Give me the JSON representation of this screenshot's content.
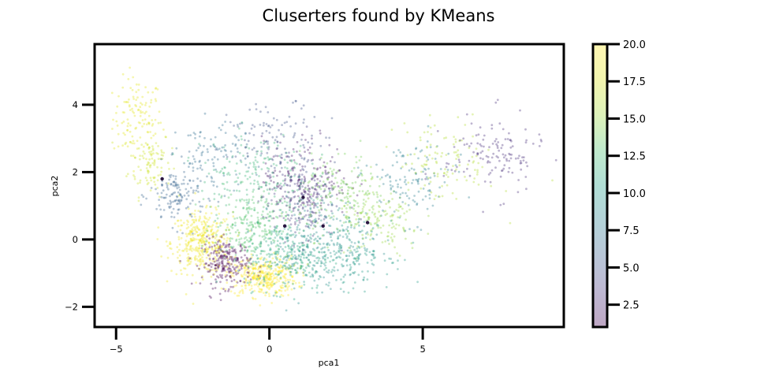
{
  "chart_data": {
    "type": "scatter",
    "title": "Cluserters found by KMeans",
    "xlabel": "pca1",
    "ylabel": "pca2",
    "xlim": [
      -5.7,
      9.6
    ],
    "ylim": [
      -2.6,
      5.8
    ],
    "xticks": [
      -5,
      0,
      5
    ],
    "xtick_labels": [
      "−5",
      "0",
      "5"
    ],
    "yticks": [
      -2,
      0,
      2,
      4
    ],
    "ytick_labels": [
      "−2",
      "0",
      "2",
      "4"
    ],
    "grid": false,
    "colormap": "viridis",
    "point_alpha": 0.35,
    "colorbar": {
      "range": [
        1.0,
        20.0
      ],
      "ticks": [
        2.5,
        5.0,
        7.5,
        10.0,
        12.5,
        15.0,
        17.5,
        20.0
      ],
      "tick_labels": [
        "2.5",
        "5.0",
        "7.5",
        "10.0",
        "12.5",
        "15.0",
        "17.5",
        "20.0"
      ]
    },
    "clusters": [
      {
        "cluster": 18,
        "center": [
          -4.3,
          3.6
        ],
        "spread": [
          0.4,
          0.6
        ],
        "n": 120
      },
      {
        "cluster": 17,
        "center": [
          -3.9,
          2.3
        ],
        "spread": [
          0.35,
          0.5
        ],
        "n": 100
      },
      {
        "cluster": 19,
        "center": [
          -2.2,
          -0.1
        ],
        "spread": [
          0.5,
          0.45
        ],
        "n": 380
      },
      {
        "cluster": 20,
        "center": [
          -0.2,
          -1.1
        ],
        "spread": [
          0.55,
          0.3
        ],
        "n": 380
      },
      {
        "cluster": 1,
        "center": [
          -1.4,
          -0.7
        ],
        "spread": [
          0.4,
          0.35
        ],
        "n": 240
      },
      {
        "cluster": 6,
        "center": [
          -3.0,
          1.3
        ],
        "spread": [
          0.45,
          0.45
        ],
        "n": 140
      },
      {
        "cluster": 13,
        "center": [
          -0.6,
          0.4
        ],
        "spread": [
          0.6,
          0.5
        ],
        "n": 240
      },
      {
        "cluster": 11,
        "center": [
          0.6,
          -0.5
        ],
        "spread": [
          0.7,
          0.5
        ],
        "n": 250
      },
      {
        "cluster": 9,
        "center": [
          1.5,
          0.0
        ],
        "spread": [
          0.9,
          0.7
        ],
        "n": 270
      },
      {
        "cluster": 4,
        "center": [
          1.0,
          1.2
        ],
        "spread": [
          0.6,
          0.6
        ],
        "n": 190
      },
      {
        "cluster": 2,
        "center": [
          1.2,
          1.8
        ],
        "spread": [
          0.7,
          0.6
        ],
        "n": 170
      },
      {
        "cluster": 12,
        "center": [
          -0.5,
          2.0
        ],
        "spread": [
          0.9,
          0.6
        ],
        "n": 170
      },
      {
        "cluster": 14,
        "center": [
          2.4,
          1.3
        ],
        "spread": [
          0.7,
          0.6
        ],
        "n": 170
      },
      {
        "cluster": 15,
        "center": [
          3.6,
          0.5
        ],
        "spread": [
          0.7,
          0.5
        ],
        "n": 140
      },
      {
        "cluster": 10,
        "center": [
          2.6,
          -0.4
        ],
        "spread": [
          0.7,
          0.5
        ],
        "n": 150
      },
      {
        "cluster": 8,
        "center": [
          4.6,
          1.7
        ],
        "spread": [
          0.7,
          0.6
        ],
        "n": 120
      },
      {
        "cluster": 16,
        "center": [
          5.8,
          2.3
        ],
        "spread": [
          0.8,
          0.6
        ],
        "n": 110
      },
      {
        "cluster": 3,
        "center": [
          7.3,
          2.5
        ],
        "spread": [
          0.8,
          0.6
        ],
        "n": 130
      },
      {
        "cluster": 7,
        "center": [
          -1.8,
          2.5
        ],
        "spread": [
          0.6,
          0.5
        ],
        "n": 100
      },
      {
        "cluster": 5,
        "center": [
          0.3,
          3.0
        ],
        "spread": [
          0.8,
          0.5
        ],
        "n": 110
      }
    ],
    "centroids": [
      [
        -3.5,
        1.8
      ],
      [
        1.1,
        1.25
      ],
      [
        1.75,
        0.4
      ],
      [
        3.2,
        0.5
      ],
      [
        0.5,
        0.4
      ]
    ]
  }
}
